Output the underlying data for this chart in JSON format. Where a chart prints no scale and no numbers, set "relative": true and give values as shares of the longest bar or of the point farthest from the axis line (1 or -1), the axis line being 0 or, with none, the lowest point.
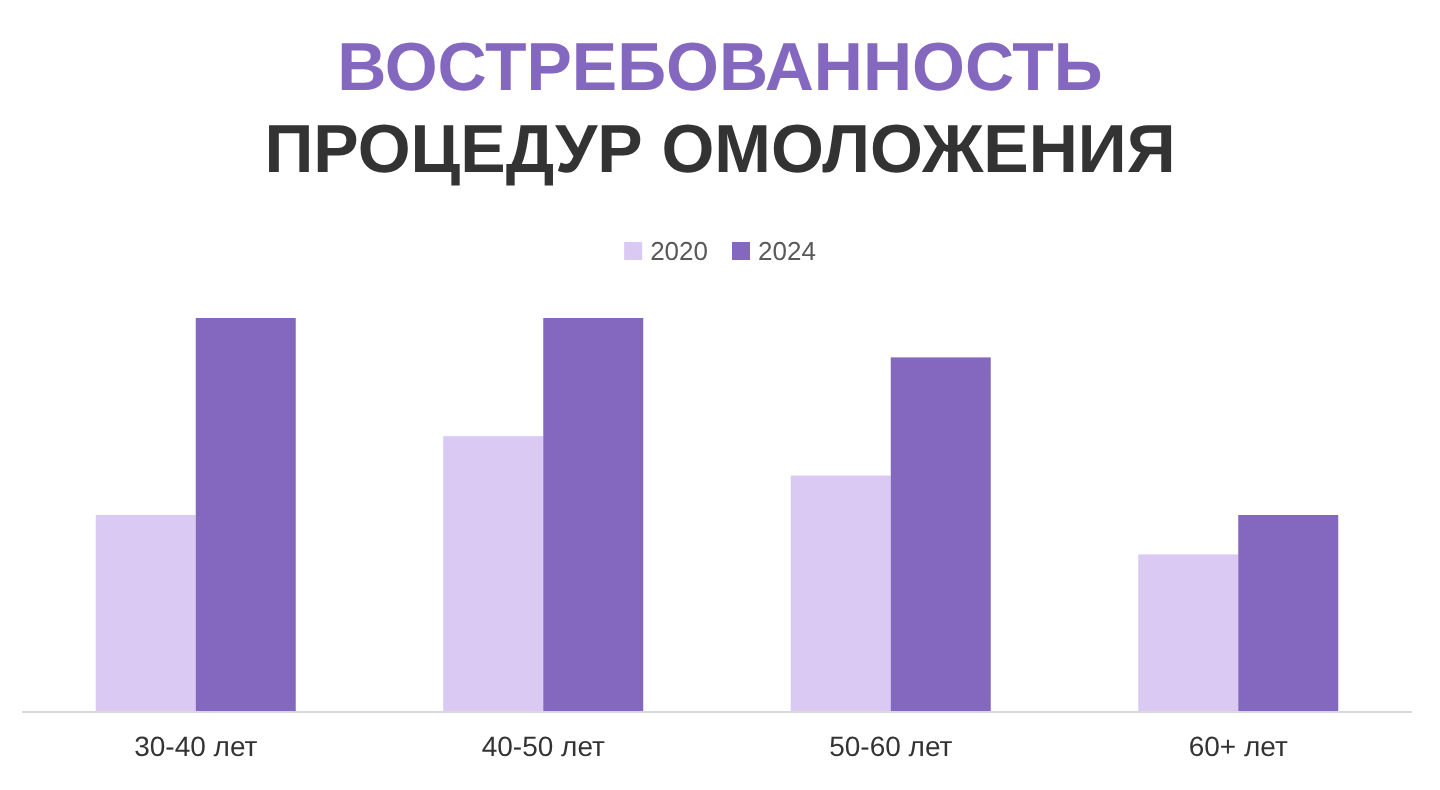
{
  "chart_data": {
    "type": "bar",
    "title": "ВОСТРЕБОВАННОСТЬ",
    "subtitle": "ПРОЦЕДУР ОМОЛОЖЕНИЯ",
    "categories": [
      "30-40 лет",
      "40-50 лет",
      "50-60 лет",
      "60+ лет"
    ],
    "relative": true,
    "legend": "top",
    "series": [
      {
        "name": "2020",
        "color": "#d9c9f3",
        "values": [
          0.5,
          0.7,
          0.6,
          0.4
        ]
      },
      {
        "name": "2024",
        "color": "#8468c0",
        "values": [
          1,
          1,
          0.9,
          0.5
        ]
      }
    ]
  }
}
